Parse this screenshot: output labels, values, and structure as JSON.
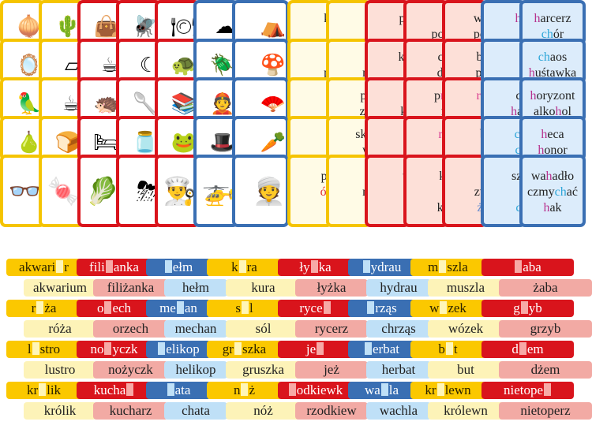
{
  "colors": {
    "yellow_border": "#f5c400",
    "red_border": "#d9141c",
    "blue_border": "#3a6fb3",
    "yellow_fill": "#fffbe6",
    "red_fill": "#fde0d8",
    "blue_fill": "#dcecfb"
  },
  "picture_cards": {
    "columns": [
      {
        "color": "yellow",
        "items": [
          "onion",
          "mirror",
          "parrot",
          "pear",
          "glasses"
        ]
      },
      {
        "color": "yellow",
        "items": [
          "cactus",
          "aquarium",
          "mug",
          "bread",
          "candies"
        ]
      },
      {
        "color": "red",
        "items": [
          "bag",
          "red-cup",
          "hedgehog",
          "bed",
          "lettuce-radish"
        ]
      },
      {
        "color": "red",
        "items": [
          "fly",
          "moon",
          "spoon",
          "jar",
          "storm-cloud"
        ]
      },
      {
        "color": "red",
        "items": [
          "plate",
          "turtle",
          "books",
          "frog",
          "cook"
        ]
      },
      {
        "color": "blue",
        "items": [
          "cloud",
          "beetle",
          "chinese-man",
          "hat",
          "helicopter"
        ]
      },
      {
        "color": "blue",
        "items": [
          "tent",
          "mushroom",
          "fan",
          "carrots",
          "indian-man"
        ]
      }
    ]
  },
  "word_cards": {
    "columns": [
      {
        "color": "yellow",
        "cards": [
          [
            "kłót",
            "pró"
          ],
          [
            "rus",
            "płót"
          ],
          [
            "wó",
            "pió"
          ],
          [
            "mi",
            "żu"
          ],
          [
            "próc",
            "ósen",
            "kró"
          ]
        ]
      },
      {
        "color": "yellow",
        "cards": [
          [
            "dr",
            "ogr"
          ],
          [
            "gór",
            "rów"
          ],
          [
            "pow",
            "zasu"
          ],
          [
            "skuw",
            "wkr"
          ],
          [
            "źró",
            "rów",
            "gru"
          ]
        ]
      },
      {
        "color": "red",
        "cards": [
          [
            "prze",
            "krz"
          ],
          [
            "kołn",
            "m"
          ],
          [
            "brz",
            "ksia"
          ],
          [
            "rza",
            "żo"
          ],
          [
            "tale",
            "mo",
            "ży"
          ]
        ]
      },
      {
        "color": "red",
        "cards": [
          [
            "du",
            "porze"
          ],
          [
            "chrz",
            "droż"
          ],
          [
            "przej",
            "noż"
          ],
          [
            "rzez",
            "słu"
          ],
          [
            "ksia",
            "rze",
            "korz"
          ]
        ]
      },
      {
        "color": "red",
        "cards": [
          [
            "warz",
            "poży"
          ],
          [
            "brza",
            "pasa"
          ],
          [
            "rzep",
            "łyż"
          ],
          [
            "bag",
            "żad"
          ],
          [
            "żm",
            "zwie",
            "żoła"
          ]
        ]
      },
      {
        "color": "blue",
        "cards": [
          [
            "ham",
            "mu"
          ],
          [
            "har",
            "che"
          ],
          [
            "cich",
            "harm"
          ],
          [
            "chor",
            "chrz"
          ],
          [
            "szlac",
            "hał",
            "chw"
          ]
        ]
      },
      {
        "color": "blue",
        "cards": [
          [
            "harcerz",
            "chór"
          ],
          [
            "chaos",
            "huśtawka"
          ],
          [
            "horyzont",
            "alkohol"
          ],
          [
            "heca",
            "honor"
          ],
          [
            "wahadło",
            "czmychać",
            "hak"
          ]
        ]
      }
    ]
  },
  "strips": [
    {
      "gap_row": [
        {
          "color": "yellow",
          "before": "akwari",
          "after": "r"
        },
        {
          "color": "red",
          "before": "fili",
          "after": "anka"
        },
        {
          "color": "blue",
          "before": "",
          "after": "ełm"
        },
        {
          "color": "yellow",
          "before": "k",
          "after": "ra"
        },
        {
          "color": "red",
          "before": "ły",
          "after": "ka"
        },
        {
          "color": "blue",
          "before": "",
          "after": "ydrau"
        },
        {
          "color": "yellow",
          "before": "m",
          "after": "szla"
        },
        {
          "color": "red",
          "before": "",
          "after": "aba"
        }
      ],
      "answer_row": [
        {
          "color": "yellow",
          "text": "akwarium"
        },
        {
          "color": "red",
          "text": "filiżanka"
        },
        {
          "color": "blue",
          "text": "hełm"
        },
        {
          "color": "yellow",
          "text": "kura"
        },
        {
          "color": "red",
          "text": "łyżka"
        },
        {
          "color": "blue",
          "text": "hydrau"
        },
        {
          "color": "yellow",
          "text": "muszla"
        },
        {
          "color": "red",
          "text": "żaba"
        }
      ]
    },
    {
      "gap_row": [
        {
          "color": "yellow",
          "before": "r",
          "after": "ża"
        },
        {
          "color": "red",
          "before": "o",
          "after": "ech"
        },
        {
          "color": "blue",
          "before": "me",
          "after": "an"
        },
        {
          "color": "yellow",
          "before": "s",
          "after": "l"
        },
        {
          "color": "red",
          "before": "ryce",
          "after": ""
        },
        {
          "color": "blue",
          "before": "",
          "after": "rząs"
        },
        {
          "color": "yellow",
          "before": "w",
          "after": "zek"
        },
        {
          "color": "red",
          "before": "g",
          "after": "yb"
        }
      ],
      "answer_row": [
        {
          "color": "yellow",
          "text": "róża"
        },
        {
          "color": "red",
          "text": "orzech"
        },
        {
          "color": "blue",
          "text": "mechan"
        },
        {
          "color": "yellow",
          "text": "sól"
        },
        {
          "color": "red",
          "text": "rycerz"
        },
        {
          "color": "blue",
          "text": "chrząs"
        },
        {
          "color": "yellow",
          "text": "wózek"
        },
        {
          "color": "red",
          "text": "grzyb"
        }
      ]
    },
    {
      "gap_row": [
        {
          "color": "yellow",
          "before": "l",
          "after": "stro"
        },
        {
          "color": "red",
          "before": "no",
          "after": "yczk"
        },
        {
          "color": "blue",
          "before": "",
          "after": "elikop"
        },
        {
          "color": "yellow",
          "before": "gr",
          "after": "szka"
        },
        {
          "color": "red",
          "before": "je",
          "after": ""
        },
        {
          "color": "blue",
          "before": "",
          "after": "erbat"
        },
        {
          "color": "yellow",
          "before": "b",
          "after": "t"
        },
        {
          "color": "red",
          "before": "d",
          "after": "em"
        }
      ],
      "answer_row": [
        {
          "color": "yellow",
          "text": "lustro"
        },
        {
          "color": "red",
          "text": "nożyczk"
        },
        {
          "color": "blue",
          "text": "helikop"
        },
        {
          "color": "yellow",
          "text": "gruszka"
        },
        {
          "color": "red",
          "text": "jeż"
        },
        {
          "color": "blue",
          "text": "herbat"
        },
        {
          "color": "yellow",
          "text": "but"
        },
        {
          "color": "red",
          "text": "dżem"
        }
      ]
    },
    {
      "gap_row": [
        {
          "color": "yellow",
          "before": "kr",
          "after": "lik"
        },
        {
          "color": "red",
          "before": "kucha",
          "after": ""
        },
        {
          "color": "blue",
          "before": "",
          "after": "ata"
        },
        {
          "color": "yellow",
          "before": "n",
          "after": "ż"
        },
        {
          "color": "red",
          "before": "",
          "after": "odkiewk"
        },
        {
          "color": "blue",
          "before": "wa",
          "after": "la"
        },
        {
          "color": "yellow",
          "before": "kr",
          "after": "lewn"
        },
        {
          "color": "red",
          "before": "nietope",
          "after": ""
        }
      ],
      "answer_row": [
        {
          "color": "yellow",
          "text": "królik"
        },
        {
          "color": "red",
          "text": "kucharz"
        },
        {
          "color": "blue",
          "text": "chata"
        },
        {
          "color": "yellow",
          "text": "nóż"
        },
        {
          "color": "red",
          "text": "rzodkiew"
        },
        {
          "color": "blue",
          "text": "wachla"
        },
        {
          "color": "yellow",
          "text": "królewn"
        },
        {
          "color": "red",
          "text": "nietoperz"
        }
      ]
    }
  ]
}
